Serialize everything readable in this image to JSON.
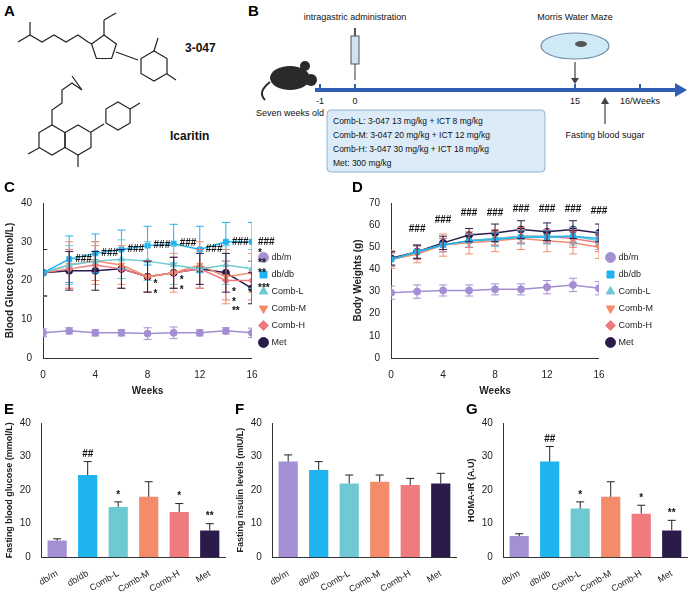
{
  "figure": {
    "A": {
      "panel": "A",
      "structures": [
        {
          "name": "3-047"
        },
        {
          "name": "Icaritin"
        }
      ]
    },
    "B": {
      "panel": "B",
      "start_label": "Seven weeks old",
      "dosing_label": "intragastric administration",
      "test_label": "Morris Water Maze",
      "sampling_label": "Fasting blood sugar",
      "timeline_ticks": [
        "-1",
        "0",
        "15",
        "16/Weeks"
      ],
      "groups": [
        "Comb-L: 3-047 13 mg/kg + ICT 8 mg/kg",
        "Comb-M: 3-047 20 mg/kg + ICT 12 mg/kg",
        "Comb-H: 3-047 30 mg/kg + ICT 18 mg/kg",
        "Met: 300 mg/kg"
      ]
    }
  },
  "chart_data": [
    {
      "panel": "C",
      "type": "line",
      "x_label": "Weeks",
      "y_label": "Blood Glucose (mmol/L)",
      "x": [
        0,
        2,
        4,
        6,
        8,
        10,
        12,
        14,
        16
      ],
      "xlim": [
        0,
        16
      ],
      "xticks": [
        0,
        4,
        8,
        12,
        16
      ],
      "ylim": [
        0,
        40
      ],
      "yticks": [
        0,
        10,
        20,
        30,
        40
      ],
      "grid": false,
      "legend": "right",
      "series": [
        {
          "name": "db/m",
          "color": "#a58fd3",
          "marker": "circle",
          "values": [
            6.5,
            7,
            6.5,
            6.5,
            6.3,
            6.5,
            6.5,
            7,
            6.5
          ],
          "errors": [
            1,
            0.8,
            0.8,
            0.8,
            1.5,
            1.5,
            0.8,
            0.8,
            1.2
          ]
        },
        {
          "name": "db/db",
          "color": "#1fb3f0",
          "marker": "square",
          "values": [
            22,
            25.5,
            27,
            28,
            29,
            29.5,
            28,
            30,
            30
          ],
          "errors": [
            6,
            6,
            5,
            5,
            5,
            5,
            6,
            5,
            5
          ]
        },
        {
          "name": "Comb-L",
          "color": "#6ec9d3",
          "marker": "triangle",
          "values": [
            22,
            24,
            25,
            25.5,
            25,
            24,
            23,
            24,
            23
          ],
          "errors": [
            6,
            5,
            5,
            5,
            5,
            5,
            5,
            5,
            5
          ]
        },
        {
          "name": "Comb-M",
          "color": "#f48c6c",
          "marker": "triangle-down",
          "values": [
            22,
            24,
            25,
            24,
            21,
            22,
            24,
            21,
            22
          ],
          "errors": [
            6,
            6,
            5,
            5,
            4,
            5,
            6,
            7,
            5
          ]
        },
        {
          "name": "Comb-H",
          "color": "#ef7b7e",
          "marker": "diamond",
          "values": [
            22,
            23,
            24,
            23,
            21,
            22,
            23,
            20,
            20
          ],
          "errors": [
            6,
            5,
            5,
            5,
            4,
            4,
            5,
            5,
            5
          ]
        },
        {
          "name": "Met",
          "color": "#2b1b4b",
          "marker": "circle",
          "values": [
            22,
            22.5,
            22.5,
            23,
            21,
            22,
            23,
            22,
            18
          ],
          "errors": [
            6,
            5,
            5,
            5,
            4,
            4,
            4,
            5,
            4
          ]
        }
      ],
      "annotations": [
        {
          "x": 2,
          "y": 25.5,
          "text": "###"
        },
        {
          "x": 4,
          "y": 27,
          "text": "###"
        },
        {
          "x": 6,
          "y": 28,
          "text": "###"
        },
        {
          "x": 8,
          "y": 29,
          "text": "###"
        },
        {
          "x": 10,
          "y": 29.5,
          "text": "###"
        },
        {
          "x": 12,
          "y": 28,
          "text": "###"
        },
        {
          "x": 14,
          "y": 30,
          "text": "###"
        },
        {
          "x": 16,
          "y": 30,
          "text": "###"
        },
        {
          "x": 8,
          "y": 19,
          "text": "*"
        },
        {
          "x": 8,
          "y": 16.5,
          "text": "*"
        },
        {
          "x": 10,
          "y": 20,
          "text": "*"
        },
        {
          "x": 10,
          "y": 17.5,
          "text": "*"
        },
        {
          "x": 14,
          "y": 17,
          "text": "*"
        },
        {
          "x": 14,
          "y": 14.5,
          "text": "*"
        },
        {
          "x": 14,
          "y": 12,
          "text": "**"
        },
        {
          "x": 16,
          "y": 27,
          "text": "*"
        },
        {
          "x": 16,
          "y": 24.5,
          "text": "**"
        },
        {
          "x": 16,
          "y": 22,
          "text": "**"
        },
        {
          "x": 16,
          "y": 18,
          "text": "***"
        }
      ]
    },
    {
      "panel": "D",
      "type": "line",
      "x_label": "Weeks",
      "y_label": "Body Weights (g)",
      "x": [
        0,
        2,
        4,
        6,
        8,
        10,
        12,
        14,
        16
      ],
      "xlim": [
        0,
        16
      ],
      "xticks": [
        0,
        4,
        8,
        12,
        16
      ],
      "ylim": [
        0,
        70
      ],
      "yticks": [
        0,
        10,
        20,
        30,
        40,
        50,
        60,
        70
      ],
      "grid": false,
      "legend": "right",
      "series": [
        {
          "name": "db/m",
          "color": "#a58fd3",
          "marker": "circle",
          "values": [
            29.5,
            30,
            30.5,
            30.5,
            31,
            31,
            32,
            33,
            31.5
          ],
          "errors": [
            3,
            3,
            2.5,
            2.5,
            2.5,
            2.5,
            3,
            3,
            3
          ]
        },
        {
          "name": "db/db",
          "color": "#1fb3f0",
          "marker": "square",
          "values": [
            44.5,
            48,
            51,
            53,
            53.5,
            54.5,
            54.5,
            55,
            54
          ],
          "errors": [
            3,
            3,
            3,
            3,
            3,
            3,
            3,
            3,
            3
          ]
        },
        {
          "name": "Comb-L",
          "color": "#6ec9d3",
          "marker": "triangle",
          "values": [
            44.5,
            48,
            51,
            53,
            54,
            55,
            55,
            55,
            53
          ],
          "errors": [
            3,
            3,
            3,
            3,
            3,
            3,
            3,
            4,
            4
          ]
        },
        {
          "name": "Comb-M",
          "color": "#f48c6c",
          "marker": "triangle-down",
          "values": [
            44.5,
            47,
            51,
            52,
            53,
            54,
            53,
            52,
            50
          ],
          "errors": [
            4,
            4,
            5,
            5,
            5,
            5,
            5,
            5,
            5
          ]
        },
        {
          "name": "Comb-H",
          "color": "#ef7b7e",
          "marker": "diamond",
          "values": [
            44.5,
            47.5,
            51,
            53,
            54,
            55,
            55,
            54,
            52
          ],
          "errors": [
            3,
            3,
            3,
            3,
            3,
            3,
            3,
            4,
            4
          ]
        },
        {
          "name": "Met",
          "color": "#2b1b4b",
          "marker": "circle",
          "values": [
            45,
            48,
            52,
            55.5,
            56.5,
            58,
            57,
            58,
            56.5
          ],
          "errors": [
            3,
            3,
            3,
            3,
            4,
            4,
            4,
            4,
            4
          ]
        }
      ],
      "annotations": [
        {
          "x": 2,
          "y": 56,
          "text": "###"
        },
        {
          "x": 4,
          "y": 60,
          "text": "###"
        },
        {
          "x": 6,
          "y": 63,
          "text": "###"
        },
        {
          "x": 8,
          "y": 63,
          "text": "###"
        },
        {
          "x": 10,
          "y": 65,
          "text": "###"
        },
        {
          "x": 12,
          "y": 65,
          "text": "###"
        },
        {
          "x": 14,
          "y": 65,
          "text": "###"
        },
        {
          "x": 16,
          "y": 64,
          "text": "###"
        }
      ]
    },
    {
      "panel": "E",
      "type": "bar",
      "y_label": "Fasting blood glucose (mmol/L)",
      "categories": [
        "db/m",
        "db/db",
        "Comb-L",
        "Comb-M",
        "Comb-H",
        "Met"
      ],
      "values": [
        5,
        24.5,
        15,
        18,
        13.5,
        8
      ],
      "errors": [
        0.5,
        4,
        1.5,
        4.5,
        2.5,
        2
      ],
      "colors": [
        "#a58fd3",
        "#1fb3f0",
        "#6ec9d3",
        "#f48c6c",
        "#ef7b7e",
        "#2b1b4b"
      ],
      "ylim": [
        0,
        40
      ],
      "yticks": [
        0,
        10,
        20,
        30,
        40
      ],
      "grid": false,
      "annotations": [
        {
          "category": "db/db",
          "text": "##"
        },
        {
          "category": "Comb-L",
          "text": "*"
        },
        {
          "category": "Comb-H",
          "text": "*"
        },
        {
          "category": "Met",
          "text": "**"
        }
      ]
    },
    {
      "panel": "F",
      "type": "bar",
      "y_label": "Fasting insulin levels (mIU/L)",
      "categories": [
        "db/m",
        "db/db",
        "Comb-L",
        "Comb-M",
        "Comb-H",
        "Met"
      ],
      "values": [
        28.5,
        26,
        22,
        22.5,
        21.5,
        22
      ],
      "errors": [
        2,
        2.5,
        2.5,
        2,
        2,
        3
      ],
      "colors": [
        "#a58fd3",
        "#1fb3f0",
        "#6ec9d3",
        "#f48c6c",
        "#ef7b7e",
        "#2b1b4b"
      ],
      "ylim": [
        0,
        40
      ],
      "yticks": [
        0,
        10,
        20,
        30,
        40
      ],
      "grid": false,
      "annotations": []
    },
    {
      "panel": "G",
      "type": "bar",
      "y_label": "HOMA-IR (A.U)",
      "categories": [
        "db/m",
        "db/db",
        "Comb-L",
        "Comb-M",
        "Comb-H",
        "Met"
      ],
      "values": [
        6.3,
        28.5,
        14.5,
        18,
        13,
        8
      ],
      "errors": [
        0.7,
        4.5,
        2,
        4.5,
        2.5,
        3
      ],
      "colors": [
        "#a58fd3",
        "#1fb3f0",
        "#6ec9d3",
        "#f48c6c",
        "#ef7b7e",
        "#2b1b4b"
      ],
      "ylim": [
        0,
        40
      ],
      "yticks": [
        0,
        10,
        20,
        30,
        40
      ],
      "grid": false,
      "annotations": [
        {
          "category": "db/db",
          "text": "##"
        },
        {
          "category": "Comb-L",
          "text": "*"
        },
        {
          "category": "Comb-H",
          "text": "*"
        },
        {
          "category": "Met",
          "text": "**"
        }
      ]
    }
  ]
}
